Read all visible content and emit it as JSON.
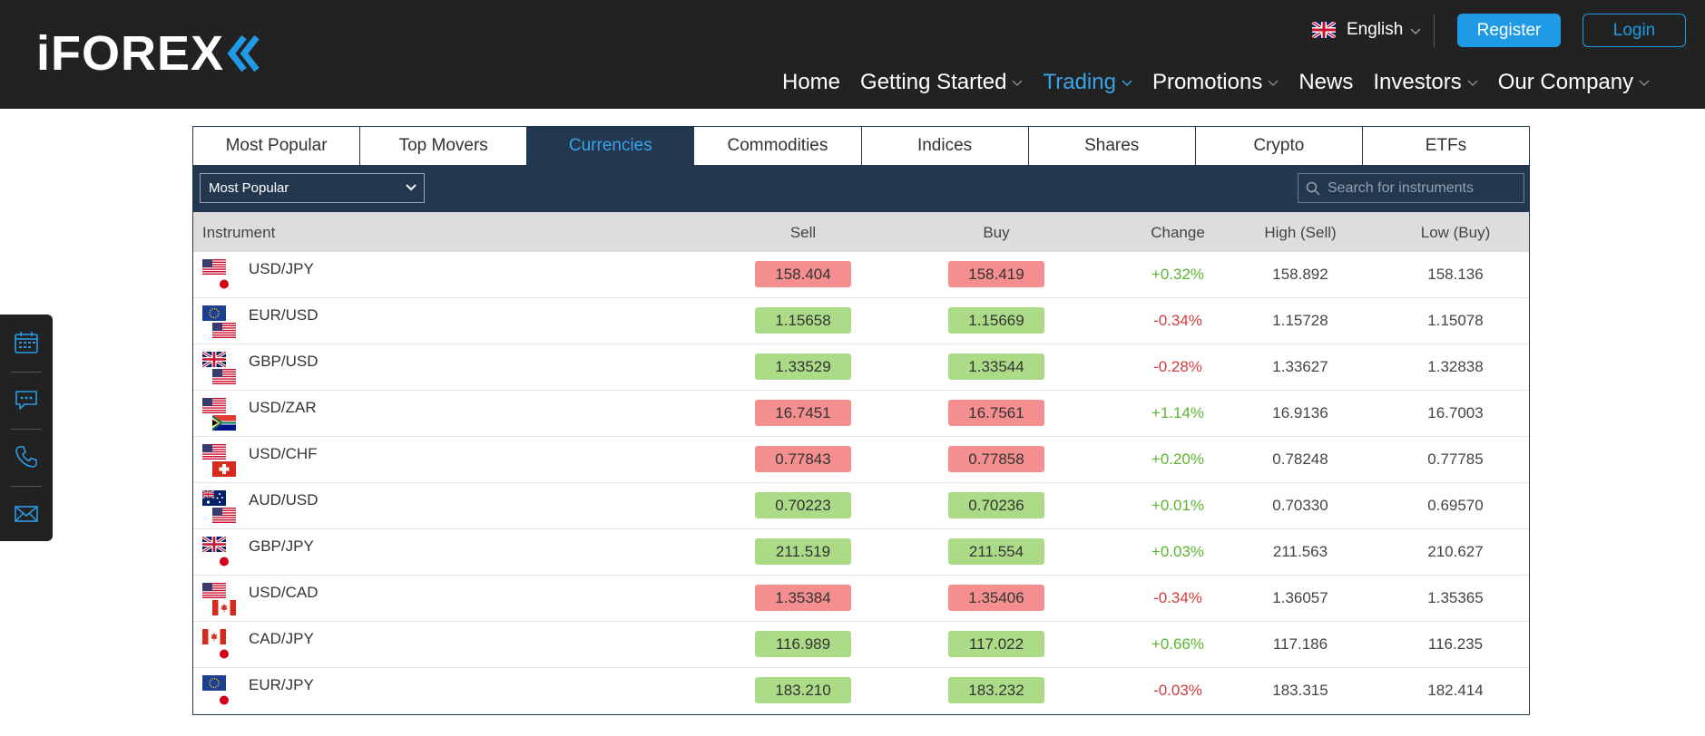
{
  "header": {
    "logo": "iFOREX",
    "language": "English",
    "register_label": "Register",
    "login_label": "Login",
    "nav": [
      {
        "label": "Home",
        "dropdown": false,
        "active": false
      },
      {
        "label": "Getting Started",
        "dropdown": true,
        "active": false
      },
      {
        "label": "Trading",
        "dropdown": true,
        "active": true
      },
      {
        "label": "Promotions",
        "dropdown": true,
        "active": false
      },
      {
        "label": "News",
        "dropdown": false,
        "active": false
      },
      {
        "label": "Investors",
        "dropdown": true,
        "active": false
      },
      {
        "label": "Our Company",
        "dropdown": true,
        "active": false
      }
    ]
  },
  "sidebar": {
    "icons": [
      "calendar-icon",
      "chat-icon",
      "phone-icon",
      "mail-icon"
    ]
  },
  "widget": {
    "tabs": [
      {
        "label": "Most Popular",
        "active": false
      },
      {
        "label": "Top Movers",
        "active": false
      },
      {
        "label": "Currencies",
        "active": true
      },
      {
        "label": "Commodities",
        "active": false
      },
      {
        "label": "Indices",
        "active": false
      },
      {
        "label": "Shares",
        "active": false
      },
      {
        "label": "Crypto",
        "active": false
      },
      {
        "label": "ETFs",
        "active": false
      }
    ],
    "filter_value": "Most Popular",
    "search_placeholder": "Search for instruments",
    "columns": {
      "instrument": "Instrument",
      "sell": "Sell",
      "buy": "Buy",
      "change": "Change",
      "high": "High (Sell)",
      "low": "Low (Buy)"
    },
    "rows": [
      {
        "instrument": "USD/JPY",
        "flags": [
          "us",
          "jp"
        ],
        "sell": "158.404",
        "buy": "158.419",
        "change": "+0.32%",
        "high": "158.892",
        "low": "158.136",
        "direction": "down"
      },
      {
        "instrument": "EUR/USD",
        "flags": [
          "eu",
          "us"
        ],
        "sell": "1.15658",
        "buy": "1.15669",
        "change": "-0.34%",
        "high": "1.15728",
        "low": "1.15078",
        "direction": "up"
      },
      {
        "instrument": "GBP/USD",
        "flags": [
          "gb",
          "us"
        ],
        "sell": "1.33529",
        "buy": "1.33544",
        "change": "-0.28%",
        "high": "1.33627",
        "low": "1.32838",
        "direction": "up"
      },
      {
        "instrument": "USD/ZAR",
        "flags": [
          "us",
          "za"
        ],
        "sell": "16.7451",
        "buy": "16.7561",
        "change": "+1.14%",
        "high": "16.9136",
        "low": "16.7003",
        "direction": "down"
      },
      {
        "instrument": "USD/CHF",
        "flags": [
          "us",
          "ch"
        ],
        "sell": "0.77843",
        "buy": "0.77858",
        "change": "+0.20%",
        "high": "0.78248",
        "low": "0.77785",
        "direction": "down"
      },
      {
        "instrument": "AUD/USD",
        "flags": [
          "au",
          "us"
        ],
        "sell": "0.70223",
        "buy": "0.70236",
        "change": "+0.01%",
        "high": "0.70330",
        "low": "0.69570",
        "direction": "up"
      },
      {
        "instrument": "GBP/JPY",
        "flags": [
          "gb",
          "jp"
        ],
        "sell": "211.519",
        "buy": "211.554",
        "change": "+0.03%",
        "high": "211.563",
        "low": "210.627",
        "direction": "up"
      },
      {
        "instrument": "USD/CAD",
        "flags": [
          "us",
          "ca"
        ],
        "sell": "1.35384",
        "buy": "1.35406",
        "change": "-0.34%",
        "high": "1.36057",
        "low": "1.35365",
        "direction": "down"
      },
      {
        "instrument": "CAD/JPY",
        "flags": [
          "ca",
          "jp"
        ],
        "sell": "116.989",
        "buy": "117.022",
        "change": "+0.66%",
        "high": "117.186",
        "low": "116.235",
        "direction": "up"
      },
      {
        "instrument": "EUR/JPY",
        "flags": [
          "eu",
          "jp"
        ],
        "sell": "183.210",
        "buy": "183.232",
        "change": "-0.03%",
        "high": "183.315",
        "low": "182.414",
        "direction": "up"
      }
    ]
  },
  "colors": {
    "header_bg": "#222222",
    "accent": "#1f9be6",
    "widget_dark": "#23384f",
    "price_up": "#acdb88",
    "price_down": "#f58f8f",
    "change_positive": "#5bb52e",
    "change_negative": "#d23c3c"
  }
}
